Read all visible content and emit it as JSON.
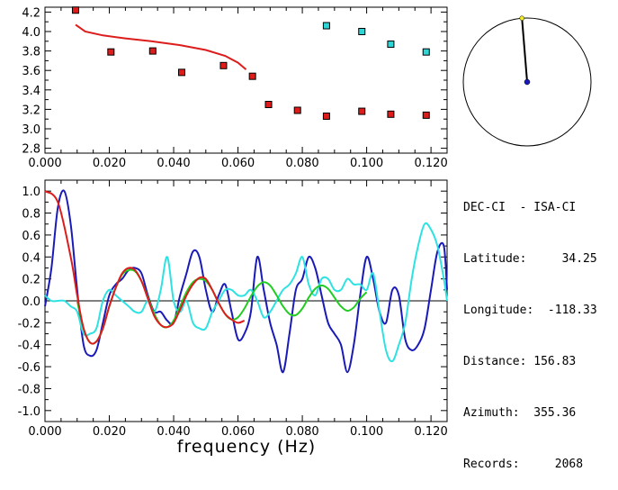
{
  "chart_data": [
    {
      "type": "scatter",
      "xlim": [
        0.0,
        0.125
      ],
      "ylim": [
        2.75,
        4.25
      ],
      "x_ticks": [
        "0.000",
        "0.020",
        "0.040",
        "0.060",
        "0.080",
        "0.100",
        "0.120"
      ],
      "y_ticks": [
        "2.8",
        "3.0",
        "3.2",
        "3.4",
        "3.6",
        "3.8",
        "4.0",
        "4.2"
      ],
      "series": [
        {
          "marker": "square",
          "color": "#dd1c1c",
          "points": [
            [
              0.0095,
              4.22
            ],
            [
              0.0205,
              3.79
            ],
            [
              0.0335,
              3.8
            ],
            [
              0.0425,
              3.58
            ],
            [
              0.0555,
              3.65
            ],
            [
              0.0645,
              3.54
            ],
            [
              0.0695,
              3.25
            ],
            [
              0.0785,
              3.19
            ],
            [
              0.0875,
              3.13
            ],
            [
              0.0985,
              3.18
            ],
            [
              0.1075,
              3.15
            ],
            [
              0.1185,
              3.14
            ]
          ]
        },
        {
          "marker": "square",
          "color": "#2ed5d5",
          "points": [
            [
              0.0875,
              4.06
            ],
            [
              0.0985,
              4.0
            ],
            [
              0.1075,
              3.87
            ],
            [
              0.1185,
              3.79
            ]
          ]
        },
        {
          "type": "line",
          "color": "#dd1c1c",
          "points": [
            [
              0.0095,
              4.07
            ],
            [
              0.0125,
              4.0
            ],
            [
              0.018,
              3.96
            ],
            [
              0.025,
              3.93
            ],
            [
              0.033,
              3.9
            ],
            [
              0.042,
              3.86
            ],
            [
              0.05,
              3.81
            ],
            [
              0.056,
              3.75
            ],
            [
              0.06,
              3.68
            ],
            [
              0.0625,
              3.61
            ]
          ]
        }
      ]
    },
    {
      "type": "line",
      "xlabel": "frequency (Hz)",
      "xlim": [
        0.0,
        0.125
      ],
      "ylim": [
        -1.1,
        1.1
      ],
      "x_ticks": [
        "0.000",
        "0.020",
        "0.040",
        "0.060",
        "0.080",
        "0.100",
        "0.120"
      ],
      "y_ticks": [
        "1.0",
        "0.8",
        "0.6",
        "0.4",
        "0.2",
        "0.0",
        "-0.2",
        "-0.4",
        "-0.6",
        "-0.8",
        "-1.0"
      ],
      "zero_line": true,
      "series": [
        {
          "color": "#1a1ab8",
          "x": [
            0.0,
            0.002,
            0.004,
            0.006,
            0.008,
            0.01,
            0.012,
            0.014,
            0.016,
            0.018,
            0.02,
            0.022,
            0.024,
            0.026,
            0.028,
            0.03,
            0.032,
            0.034,
            0.036,
            0.038,
            0.04,
            0.042,
            0.044,
            0.046,
            0.048,
            0.05,
            0.052,
            0.054,
            0.056,
            0.058,
            0.06,
            0.062,
            0.064,
            0.066,
            0.068,
            0.07,
            0.072,
            0.074,
            0.076,
            0.078,
            0.08,
            0.082,
            0.084,
            0.086,
            0.088,
            0.09,
            0.092,
            0.094,
            0.096,
            0.098,
            0.1,
            0.102,
            0.104,
            0.106,
            0.108,
            0.11,
            0.112,
            0.114,
            0.116,
            0.118,
            0.12,
            0.122,
            0.124,
            0.125
          ],
          "values": [
            -0.05,
            0.3,
            0.85,
            1.0,
            0.7,
            0.1,
            -0.4,
            -0.5,
            -0.45,
            -0.2,
            0.05,
            0.15,
            0.2,
            0.28,
            0.3,
            0.25,
            0.05,
            -0.1,
            -0.1,
            -0.18,
            -0.2,
            0.05,
            0.25,
            0.45,
            0.4,
            0.1,
            -0.1,
            0.05,
            0.15,
            -0.1,
            -0.35,
            -0.3,
            -0.1,
            0.4,
            0.1,
            -0.2,
            -0.4,
            -0.65,
            -0.3,
            0.1,
            0.2,
            0.4,
            0.3,
            0.05,
            -0.2,
            -0.3,
            -0.4,
            -0.65,
            -0.4,
            0.05,
            0.4,
            0.2,
            -0.1,
            -0.2,
            0.1,
            0.05,
            -0.35,
            -0.45,
            -0.4,
            -0.25,
            0.1,
            0.45,
            0.5,
            0.1
          ]
        },
        {
          "color": "#2ee2e2",
          "x": [
            0.0,
            0.002,
            0.004,
            0.006,
            0.008,
            0.01,
            0.012,
            0.014,
            0.016,
            0.018,
            0.02,
            0.022,
            0.024,
            0.026,
            0.028,
            0.03,
            0.032,
            0.034,
            0.036,
            0.038,
            0.04,
            0.042,
            0.044,
            0.046,
            0.048,
            0.05,
            0.052,
            0.054,
            0.056,
            0.058,
            0.06,
            0.062,
            0.064,
            0.066,
            0.068,
            0.07,
            0.072,
            0.074,
            0.076,
            0.078,
            0.08,
            0.082,
            0.084,
            0.086,
            0.088,
            0.09,
            0.092,
            0.094,
            0.096,
            0.098,
            0.1,
            0.102,
            0.104,
            0.106,
            0.108,
            0.11,
            0.112,
            0.114,
            0.116,
            0.118,
            0.12,
            0.122,
            0.124,
            0.125
          ],
          "values": [
            0.05,
            0.0,
            0.0,
            0.0,
            -0.05,
            -0.1,
            -0.3,
            -0.3,
            -0.25,
            0.0,
            0.1,
            0.05,
            0.0,
            -0.05,
            -0.1,
            -0.1,
            0.0,
            -0.1,
            0.1,
            0.4,
            0.0,
            -0.1,
            0.0,
            -0.2,
            -0.25,
            -0.25,
            -0.1,
            0.0,
            0.1,
            0.1,
            0.05,
            0.05,
            0.1,
            0.0,
            -0.15,
            -0.1,
            0.0,
            0.1,
            0.15,
            0.25,
            0.4,
            0.15,
            0.05,
            0.2,
            0.2,
            0.1,
            0.1,
            0.2,
            0.15,
            0.15,
            0.1,
            0.25,
            -0.1,
            -0.45,
            -0.55,
            -0.4,
            -0.2,
            0.2,
            0.5,
            0.7,
            0.65,
            0.5,
            0.2,
            0.0
          ]
        },
        {
          "color": "#22cc22",
          "x": [
            0.01,
            0.012,
            0.014,
            0.016,
            0.018,
            0.02,
            0.022,
            0.024,
            0.026,
            0.028,
            0.03,
            0.032,
            0.034,
            0.036,
            0.038,
            0.04,
            0.042,
            0.044,
            0.046,
            0.048,
            0.05,
            0.052,
            0.054,
            0.056,
            0.058,
            0.06,
            0.062,
            0.064,
            0.066,
            0.068,
            0.07,
            0.072,
            0.074,
            0.076,
            0.078,
            0.08,
            0.082,
            0.084,
            0.086,
            0.088,
            0.09,
            0.092,
            0.094,
            0.096,
            0.098,
            0.1
          ],
          "values": [
            0.0,
            -0.25,
            -0.38,
            -0.37,
            -0.25,
            -0.05,
            0.12,
            0.24,
            0.28,
            0.27,
            0.18,
            0.03,
            -0.12,
            -0.22,
            -0.24,
            -0.18,
            -0.05,
            0.08,
            0.17,
            0.2,
            0.18,
            0.1,
            -0.02,
            -0.12,
            -0.17,
            -0.15,
            -0.07,
            0.04,
            0.13,
            0.17,
            0.14,
            0.05,
            -0.05,
            -0.12,
            -0.13,
            -0.07,
            0.03,
            0.11,
            0.14,
            0.11,
            0.03,
            -0.05,
            -0.09,
            -0.06,
            0.02,
            0.08
          ]
        },
        {
          "color": "#dd1c1c",
          "x": [
            0.0,
            0.004,
            0.008,
            0.01,
            0.012,
            0.014,
            0.016,
            0.018,
            0.02,
            0.022,
            0.024,
            0.026,
            0.028,
            0.03,
            0.032,
            0.034,
            0.036,
            0.038,
            0.04,
            0.042,
            0.044,
            0.046,
            0.048,
            0.05,
            0.052,
            0.054,
            0.056,
            0.058,
            0.06,
            0.062
          ],
          "values": [
            1.0,
            0.9,
            0.4,
            0.05,
            -0.25,
            -0.38,
            -0.37,
            -0.25,
            -0.05,
            0.12,
            0.25,
            0.3,
            0.28,
            0.18,
            0.02,
            -0.14,
            -0.22,
            -0.24,
            -0.2,
            -0.08,
            0.05,
            0.15,
            0.21,
            0.2,
            0.1,
            -0.02,
            -0.12,
            -0.17,
            -0.2,
            -0.18
          ]
        }
      ]
    },
    {
      "type": "polar",
      "azimuth": 355.36,
      "color": "#000000",
      "center_color": "#1a1ab8",
      "tip_color": "#eeee22"
    }
  ],
  "station": {
    "pair": "DEC-CI  - ISA-CI",
    "latitude": "Latitude:     34.25",
    "longitude": "Longitude:  -118.33",
    "distance": "Distance: 156.83",
    "azimuth": "Azimuth:  355.36",
    "records": "Records:     2068"
  }
}
